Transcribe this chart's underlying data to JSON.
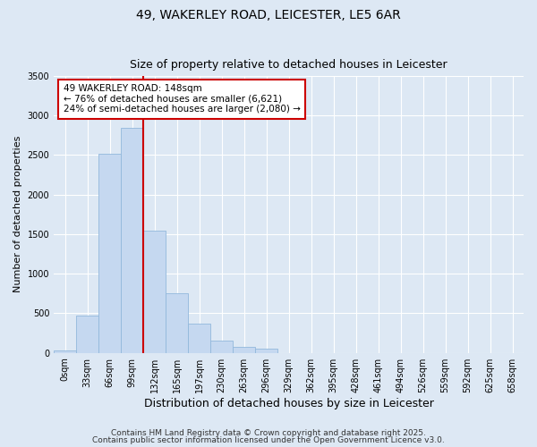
{
  "title": "49, WAKERLEY ROAD, LEICESTER, LE5 6AR",
  "subtitle": "Size of property relative to detached houses in Leicester",
  "xlabel": "Distribution of detached houses by size in Leicester",
  "ylabel": "Number of detached properties",
  "bar_categories": [
    "0sqm",
    "33sqm",
    "66sqm",
    "99sqm",
    "132sqm",
    "165sqm",
    "197sqm",
    "230sqm",
    "263sqm",
    "296sqm",
    "329sqm",
    "362sqm",
    "395sqm",
    "428sqm",
    "461sqm",
    "494sqm",
    "526sqm",
    "559sqm",
    "592sqm",
    "625sqm",
    "658sqm"
  ],
  "bar_values": [
    28,
    475,
    2520,
    2840,
    1540,
    750,
    375,
    150,
    75,
    50,
    0,
    0,
    0,
    0,
    0,
    0,
    0,
    0,
    0,
    0,
    0
  ],
  "bar_color": "#c5d8f0",
  "bar_edge_color": "#92b8dc",
  "red_line_color": "#cc0000",
  "red_line_x": 4.0,
  "annotation_text": "49 WAKERLEY ROAD: 148sqm\n← 76% of detached houses are smaller (6,621)\n24% of semi-detached houses are larger (2,080) →",
  "annotation_box_facecolor": "#ffffff",
  "annotation_box_edgecolor": "#cc0000",
  "ylim": [
    0,
    3500
  ],
  "yticks": [
    0,
    500,
    1000,
    1500,
    2000,
    2500,
    3000,
    3500
  ],
  "background_color": "#dde8f4",
  "plot_bg_color": "#dde8f4",
  "footer_line1": "Contains HM Land Registry data © Crown copyright and database right 2025.",
  "footer_line2": "Contains public sector information licensed under the Open Government Licence v3.0.",
  "title_fontsize": 10,
  "subtitle_fontsize": 9,
  "ylabel_fontsize": 8,
  "xlabel_fontsize": 9,
  "tick_fontsize": 7,
  "annotation_fontsize": 7.5,
  "footer_fontsize": 6.5
}
